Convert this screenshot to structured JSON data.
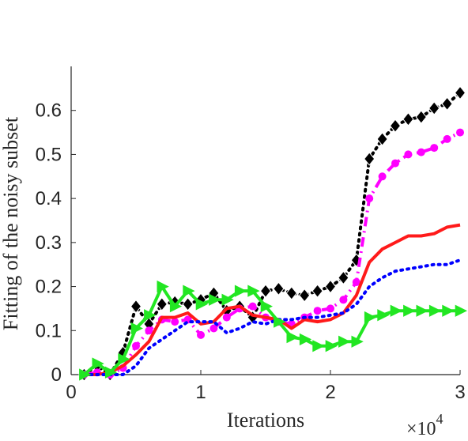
{
  "chart_data": {
    "type": "line",
    "xlabel": "Iterations",
    "ylabel": "Fitting of the noisy subset",
    "x_exponent_base": "×10",
    "x_exponent_power": "4",
    "xlim": [
      0,
      3
    ],
    "ylim": [
      0,
      0.7
    ],
    "xticks": [
      0,
      1,
      2,
      3
    ],
    "yticks": [
      0,
      0.1,
      0.2,
      0.3,
      0.4,
      0.5,
      0.6
    ],
    "xtick_labels": [
      "0",
      "1",
      "2",
      "3"
    ],
    "ytick_labels": [
      "0",
      "0.1",
      "0.2",
      "0.3",
      "0.4",
      "0.5",
      "0.6"
    ],
    "grid": false,
    "legend": "none",
    "series": [
      {
        "color": "#000000",
        "style": "dotted",
        "marker": "diamond",
        "x": [
          0.1,
          0.2,
          0.3,
          0.4,
          0.5,
          0.6,
          0.7,
          0.8,
          0.9,
          1.0,
          1.1,
          1.2,
          1.3,
          1.4,
          1.5,
          1.6,
          1.7,
          1.8,
          1.9,
          2.0,
          2.1,
          2.2,
          2.3,
          2.4,
          2.5,
          2.6,
          2.7,
          2.8,
          2.9,
          3.0
        ],
        "y": [
          0.0,
          0.02,
          0.0,
          0.05,
          0.155,
          0.115,
          0.16,
          0.165,
          0.16,
          0.17,
          0.185,
          0.145,
          0.155,
          0.13,
          0.19,
          0.195,
          0.185,
          0.18,
          0.19,
          0.2,
          0.22,
          0.26,
          0.49,
          0.535,
          0.565,
          0.58,
          0.585,
          0.605,
          0.615,
          0.64
        ]
      },
      {
        "color": "#ff00ff",
        "style": "dashdot",
        "marker": "circle",
        "x": [
          0.1,
          0.2,
          0.3,
          0.4,
          0.5,
          0.6,
          0.7,
          0.8,
          0.9,
          1.0,
          1.1,
          1.2,
          1.3,
          1.4,
          1.5,
          1.6,
          1.7,
          1.8,
          1.9,
          2.0,
          2.1,
          2.2,
          2.3,
          2.4,
          2.5,
          2.6,
          2.7,
          2.8,
          2.9,
          3.0
        ],
        "y": [
          0.0,
          0.005,
          0.0,
          0.015,
          0.065,
          0.1,
          0.125,
          0.12,
          0.125,
          0.09,
          0.105,
          0.13,
          0.15,
          0.155,
          0.13,
          0.12,
          0.115,
          0.13,
          0.145,
          0.15,
          0.17,
          0.21,
          0.4,
          0.45,
          0.48,
          0.5,
          0.505,
          0.515,
          0.535,
          0.55
        ]
      },
      {
        "color": "#ff1a1a",
        "style": "solid",
        "marker": "none",
        "x": [
          0.1,
          0.2,
          0.3,
          0.4,
          0.5,
          0.6,
          0.7,
          0.8,
          0.9,
          1.0,
          1.1,
          1.2,
          1.3,
          1.4,
          1.5,
          1.6,
          1.7,
          1.8,
          1.9,
          2.0,
          2.1,
          2.2,
          2.3,
          2.4,
          2.5,
          2.6,
          2.7,
          2.8,
          2.9,
          3.0
        ],
        "y": [
          0.0,
          0.0,
          0.005,
          0.02,
          0.045,
          0.075,
          0.13,
          0.13,
          0.14,
          0.115,
          0.12,
          0.15,
          0.155,
          0.135,
          0.13,
          0.125,
          0.105,
          0.125,
          0.12,
          0.125,
          0.14,
          0.18,
          0.255,
          0.285,
          0.3,
          0.315,
          0.315,
          0.32,
          0.335,
          0.34
        ]
      },
      {
        "color": "#0000ff",
        "style": "dotted",
        "marker": "none",
        "x": [
          0.1,
          0.2,
          0.3,
          0.4,
          0.5,
          0.6,
          0.7,
          0.8,
          0.9,
          1.0,
          1.1,
          1.2,
          1.3,
          1.4,
          1.5,
          1.6,
          1.7,
          1.8,
          1.9,
          2.0,
          2.1,
          2.2,
          2.3,
          2.4,
          2.5,
          2.6,
          2.7,
          2.8,
          2.9,
          3.0
        ],
        "y": [
          0.0,
          0.0,
          0.0,
          0.0,
          0.02,
          0.06,
          0.08,
          0.1,
          0.12,
          0.12,
          0.12,
          0.095,
          0.105,
          0.12,
          0.115,
          0.125,
          0.125,
          0.13,
          0.13,
          0.135,
          0.14,
          0.16,
          0.2,
          0.22,
          0.235,
          0.24,
          0.245,
          0.25,
          0.25,
          0.26
        ]
      },
      {
        "color": "#22e622",
        "style": "solid",
        "marker": "triangle-right",
        "x": [
          0.1,
          0.2,
          0.3,
          0.4,
          0.5,
          0.6,
          0.7,
          0.8,
          0.9,
          1.0,
          1.1,
          1.2,
          1.3,
          1.4,
          1.5,
          1.6,
          1.7,
          1.8,
          1.9,
          2.0,
          2.1,
          2.2,
          2.3,
          2.4,
          2.5,
          2.6,
          2.7,
          2.8,
          2.9,
          3.0
        ],
        "y": [
          0.0,
          0.025,
          0.005,
          0.035,
          0.105,
          0.135,
          0.2,
          0.155,
          0.19,
          0.16,
          0.17,
          0.17,
          0.19,
          0.19,
          0.155,
          0.12,
          0.085,
          0.08,
          0.065,
          0.065,
          0.075,
          0.075,
          0.13,
          0.135,
          0.145,
          0.145,
          0.145,
          0.145,
          0.145,
          0.145
        ]
      }
    ]
  }
}
